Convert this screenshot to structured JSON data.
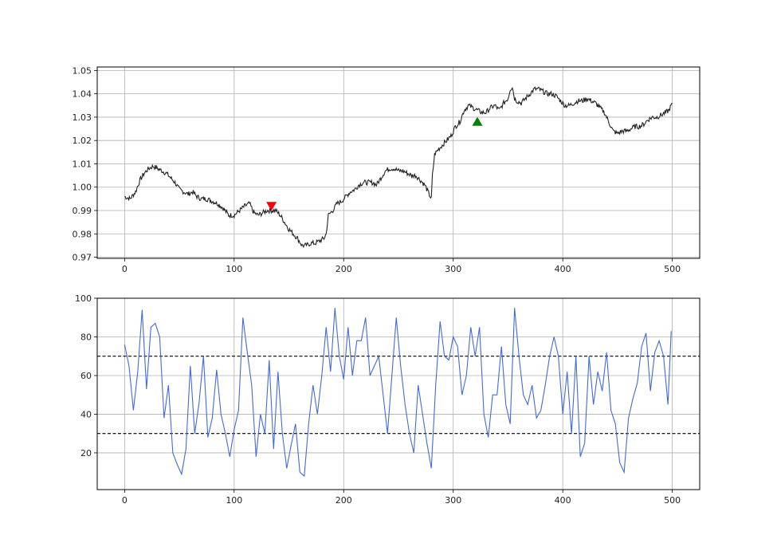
{
  "chart_data": [
    {
      "type": "line",
      "title": "",
      "xlabel": "",
      "ylabel": "",
      "xlim": [
        -25,
        525
      ],
      "ylim": [
        0.9695,
        1.0515
      ],
      "xticks": [
        0,
        100,
        200,
        300,
        400,
        500
      ],
      "yticks": [
        0.97,
        0.98,
        0.99,
        1.0,
        1.01,
        1.02,
        1.03,
        1.04,
        1.05
      ],
      "ytick_labels": [
        "0.97",
        "0.98",
        "0.99",
        "1.00",
        "1.01",
        "1.02",
        "1.03",
        "1.04",
        "1.05"
      ],
      "grid": true,
      "series": [
        {
          "color": "#222222",
          "style": "candle-ohlc",
          "points": [
            [
              0,
              0.996
            ],
            [
              5,
              0.995
            ],
            [
              10,
              0.998
            ],
            [
              14,
              1.003
            ],
            [
              18,
              1.006
            ],
            [
              22,
              1.008
            ],
            [
              26,
              1.009
            ],
            [
              30,
              1.008
            ],
            [
              34,
              1.007
            ],
            [
              38,
              1.006
            ],
            [
              42,
              1.004
            ],
            [
              46,
              1.002
            ],
            [
              50,
              0.999
            ],
            [
              54,
              0.998
            ],
            [
              58,
              0.997
            ],
            [
              62,
              0.998
            ],
            [
              66,
              0.996
            ],
            [
              70,
              0.995
            ],
            [
              75,
              0.995
            ],
            [
              80,
              0.994
            ],
            [
              85,
              0.993
            ],
            [
              90,
              0.991
            ],
            [
              95,
              0.988
            ],
            [
              100,
              0.988
            ],
            [
              105,
              0.99
            ],
            [
              110,
              0.992
            ],
            [
              114,
              0.993
            ],
            [
              118,
              0.989
            ],
            [
              122,
              0.988
            ],
            [
              126,
              0.989
            ],
            [
              130,
              0.99
            ],
            [
              134,
              0.99
            ],
            [
              138,
              0.99
            ],
            [
              142,
              0.988
            ],
            [
              146,
              0.985
            ],
            [
              150,
              0.982
            ],
            [
              154,
              0.98
            ],
            [
              158,
              0.978
            ],
            [
              162,
              0.975
            ],
            [
              166,
              0.975
            ],
            [
              170,
              0.976
            ],
            [
              174,
              0.976
            ],
            [
              178,
              0.977
            ],
            [
              182,
              0.978
            ],
            [
              184,
              0.98
            ],
            [
              186,
              0.988
            ],
            [
              190,
              0.99
            ],
            [
              194,
              0.993
            ],
            [
              198,
              0.994
            ],
            [
              202,
              0.996
            ],
            [
              206,
              0.998
            ],
            [
              210,
              0.999
            ],
            [
              214,
              1.001
            ],
            [
              218,
              1.002
            ],
            [
              222,
              1.002
            ],
            [
              226,
              1.002
            ],
            [
              230,
              1.001
            ],
            [
              234,
              1.004
            ],
            [
              238,
              1.007
            ],
            [
              242,
              1.008
            ],
            [
              246,
              1.008
            ],
            [
              250,
              1.007
            ],
            [
              254,
              1.007
            ],
            [
              258,
              1.006
            ],
            [
              262,
              1.005
            ],
            [
              266,
              1.005
            ],
            [
              270,
              1.003
            ],
            [
              274,
              1.001
            ],
            [
              277,
              0.998
            ],
            [
              280,
              0.995
            ],
            [
              281,
              1.005
            ],
            [
              283,
              1.014
            ],
            [
              286,
              1.016
            ],
            [
              290,
              1.018
            ],
            [
              294,
              1.02
            ],
            [
              298,
              1.022
            ],
            [
              302,
              1.026
            ],
            [
              306,
              1.028
            ],
            [
              310,
              1.033
            ],
            [
              314,
              1.035
            ],
            [
              318,
              1.034
            ],
            [
              322,
              1.033
            ],
            [
              326,
              1.032
            ],
            [
              330,
              1.032
            ],
            [
              334,
              1.034
            ],
            [
              338,
              1.035
            ],
            [
              342,
              1.033
            ],
            [
              346,
              1.036
            ],
            [
              350,
              1.038
            ],
            [
              352,
              1.042
            ],
            [
              354,
              1.043
            ],
            [
              356,
              1.038
            ],
            [
              358,
              1.037
            ],
            [
              362,
              1.036
            ],
            [
              366,
              1.038
            ],
            [
              370,
              1.04
            ],
            [
              374,
              1.042
            ],
            [
              378,
              1.042
            ],
            [
              382,
              1.041
            ],
            [
              386,
              1.04
            ],
            [
              390,
              1.04
            ],
            [
              394,
              1.039
            ],
            [
              398,
              1.037
            ],
            [
              402,
              1.035
            ],
            [
              406,
              1.035
            ],
            [
              410,
              1.036
            ],
            [
              414,
              1.037
            ],
            [
              418,
              1.037
            ],
            [
              422,
              1.038
            ],
            [
              426,
              1.037
            ],
            [
              430,
              1.036
            ],
            [
              434,
              1.034
            ],
            [
              438,
              1.032
            ],
            [
              442,
              1.028
            ],
            [
              446,
              1.024
            ],
            [
              450,
              1.023
            ],
            [
              454,
              1.024
            ],
            [
              458,
              1.024
            ],
            [
              462,
              1.025
            ],
            [
              466,
              1.026
            ],
            [
              470,
              1.026
            ],
            [
              474,
              1.027
            ],
            [
              478,
              1.029
            ],
            [
              482,
              1.03
            ],
            [
              486,
              1.03
            ],
            [
              490,
              1.031
            ],
            [
              494,
              1.032
            ],
            [
              497,
              1.033
            ],
            [
              500,
              1.036
            ]
          ]
        }
      ],
      "markers": [
        {
          "kind": "sell",
          "shape": "down-triangle",
          "x": 134,
          "y": 0.992,
          "color": "#ff0000"
        },
        {
          "kind": "buy",
          "shape": "up-triangle",
          "x": 322,
          "y": 1.028,
          "color": "#008000"
        }
      ]
    },
    {
      "type": "line",
      "title": "",
      "xlabel": "",
      "ylabel": "",
      "xlim": [
        -25,
        525
      ],
      "ylim": [
        1,
        100
      ],
      "xticks": [
        0,
        100,
        200,
        300,
        400,
        500
      ],
      "yticks": [
        20,
        40,
        60,
        80,
        100
      ],
      "grid": true,
      "hlines": [
        {
          "y": 70,
          "style": "dashed",
          "color": "#000000"
        },
        {
          "y": 30,
          "style": "dashed",
          "color": "#000000"
        }
      ],
      "series": [
        {
          "color": "#4169e1",
          "x": [
            0,
            4,
            8,
            12,
            16,
            20,
            24,
            28,
            32,
            36,
            40,
            44,
            48,
            52,
            56,
            60,
            64,
            68,
            72,
            76,
            80,
            84,
            88,
            92,
            96,
            100,
            104,
            108,
            112,
            116,
            120,
            124,
            128,
            132,
            136,
            140,
            144,
            148,
            152,
            156,
            160,
            164,
            168,
            172,
            176,
            180,
            184,
            188,
            192,
            196,
            200,
            204,
            208,
            212,
            216,
            220,
            224,
            228,
            232,
            236,
            240,
            244,
            248,
            252,
            256,
            260,
            264,
            268,
            272,
            276,
            280,
            284,
            288,
            292,
            296,
            300,
            304,
            308,
            312,
            316,
            320,
            324,
            328,
            332,
            336,
            340,
            344,
            348,
            352,
            356,
            360,
            364,
            368,
            372,
            376,
            380,
            384,
            388,
            392,
            396,
            400,
            404,
            408,
            412,
            416,
            420,
            424,
            428,
            432,
            436,
            440,
            444,
            448,
            452,
            456,
            460,
            464,
            468,
            472,
            476,
            480,
            484,
            488,
            492,
            496,
            499
          ],
          "values": [
            76,
            65,
            42,
            62,
            94,
            53,
            85,
            87,
            80,
            38,
            55,
            20,
            14,
            9,
            22,
            65,
            30,
            46,
            70,
            28,
            38,
            63,
            40,
            30,
            18,
            32,
            42,
            90,
            72,
            55,
            18,
            40,
            30,
            68,
            22,
            62,
            30,
            12,
            24,
            35,
            10,
            8,
            35,
            55,
            40,
            60,
            85,
            62,
            95,
            70,
            58,
            85,
            60,
            78,
            78,
            90,
            60,
            65,
            70,
            50,
            30,
            60,
            90,
            65,
            45,
            30,
            20,
            55,
            40,
            25,
            12,
            55,
            88,
            70,
            68,
            80,
            75,
            50,
            60,
            85,
            70,
            85,
            40,
            28,
            50,
            50,
            75,
            45,
            35,
            95,
            70,
            50,
            45,
            55,
            38,
            42,
            55,
            70,
            80,
            70,
            40,
            62,
            30,
            70,
            18,
            25,
            70,
            45,
            62,
            52,
            72,
            42,
            35,
            15,
            10,
            38,
            48,
            56,
            75,
            82,
            52,
            72,
            78,
            70,
            45,
            83
          ]
        }
      ]
    }
  ]
}
